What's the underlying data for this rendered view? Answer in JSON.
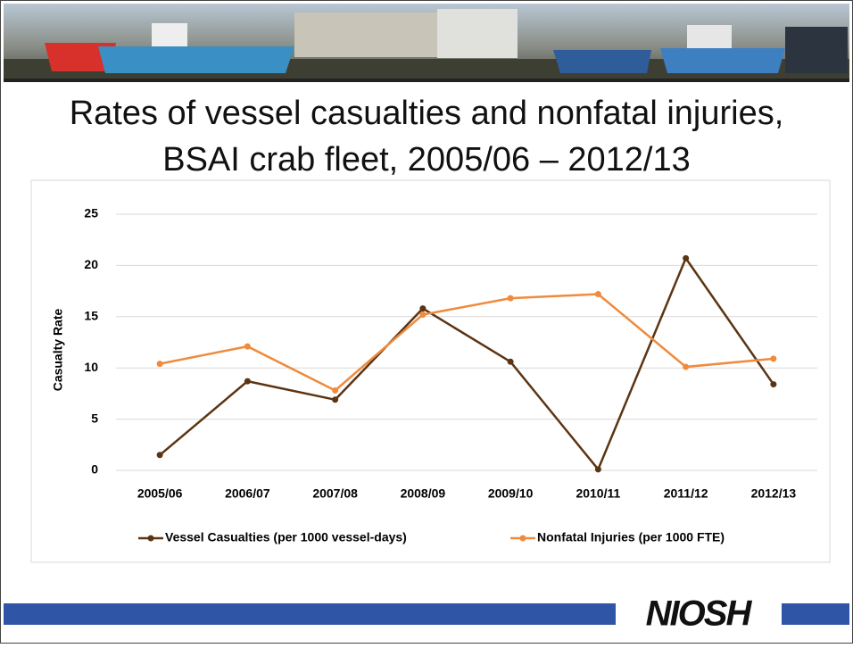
{
  "chart_data": {
    "type": "line",
    "title": [
      "Rates of vessel casualties and nonfatal injuries,",
      "BSAI crab fleet, 2005/06 – 2012/13"
    ],
    "y_label": "Casualty Rate",
    "categories": [
      "2005/06",
      "2006/07",
      "2007/08",
      "2008/09",
      "2009/10",
      "2010/11",
      "2011/12",
      "2012/13"
    ],
    "series": [
      {
        "name": "Vessel Casualties (per 1000 vessel-days)",
        "color": "#5b3413",
        "values": [
          1.5,
          8.7,
          6.9,
          15.8,
          10.6,
          0.1,
          20.7,
          8.4
        ]
      },
      {
        "name": "Nonfatal Injuries (per 1000 FTE)",
        "color": "#f08a3c",
        "values": [
          10.4,
          12.1,
          7.8,
          15.2,
          16.8,
          17.2,
          10.1,
          10.9
        ]
      }
    ],
    "ylim": [
      0,
      25
    ],
    "yticks": [
      0,
      5,
      10,
      15,
      20,
      25
    ],
    "grid": true,
    "legend": "bottom"
  },
  "footer": {
    "logo": "NIOSH"
  }
}
